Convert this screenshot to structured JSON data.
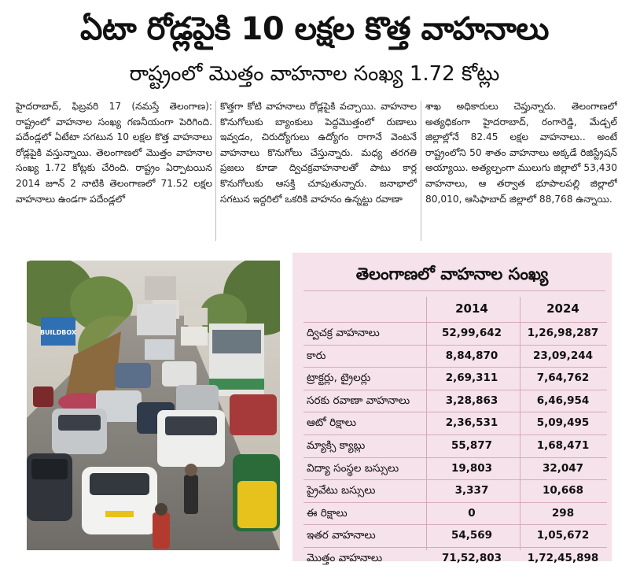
{
  "headline": "ఏటా రోడ్లపైకి 10 లక్షల కొత్త వాహనాలు",
  "subhead": "రాష్ట్రంలో మొత్తం వాహనాల సంఖ్య 1.72 కోట్లు",
  "columns": [
    "హైదరాబాద్, ఫిబ్రవరి 17 (నమస్తే తెలంగాణ): రాష్ట్రంలో వాహనాల సంఖ్య గణనీయంగా పెరిగింది. పదేండ్లలో ఏటేటా సగటున 10 లక్షల కొత్త వాహనాలు రోడ్లపైకి వస్తున్నాయి. తెలంగాణలో మొత్తం వాహనాల సంఖ్య 1.72 కోట్లకు చేరింది. రాష్ట్రం ఏర్పాటయిన 2014 జూన్ 2 నాటికి తెలంగాణలో 71.52 లక్షల వాహనాలు ఉండగా పదేండ్లలో",
    "కొత్తగా కోటి వాహనాలు రోడ్లపైకి వచ్చాయి. వాహనాల కొనుగోలుకు బ్యాంకులు పెద్దమొత్తంలో రుణాలు ఇవ్వడం, చిరుద్యోగులు ఉద్యోగం రాగానే వెంటనే వాహనాలు కొనుగోలు చేస్తున్నారు. మధ్య తరగతి ప్రజలు కూడా ద్విచక్రవాహనాలతో పాటు కార్ల కొనుగోలుకు ఆసక్తి చూపుతున్నారు. జనాభాలో సగటున ఇద్దరిలో ఒకరికి వాహనం ఉన్నట్టు రవాణా",
    "శాఖ అధికారులు చెప్తున్నారు. తెలంగాణలో అత్యధికంగా హైదరాబాద్, రంగారెడ్డి, మేడ్చల్ జిల్లాల్లోనే 82.45 లక్షల వాహనాలు.. అంటే రాష్ట్రంలోని 50 శాతం వాహనాలు అక్కడే రిజిస్ట్రేషన్ అయ్యాయి. అత్యల్పంగా ములుగు జిల్లాలో 53,430 వాహనాలు, ఆ తర్వాత భూపాలపల్లి జిల్లాలో 80,010, ఆసిఫాబాద్ జిల్లాలో 88,768 ఉన్నాయి."
  ],
  "photo": {
    "shop_sign": "BUILDBOX"
  },
  "table": {
    "title": "తెలంగాణలో వాహనాల సంఖ్య",
    "headers": [
      "2014",
      "2024"
    ],
    "rows": [
      {
        "label": "ద్విచక్ర వాహనాలు",
        "y2014": "52,99,642",
        "y2024": "1,26,98,287"
      },
      {
        "label": "కారు",
        "y2014": "8,84,870",
        "y2024": "23,09,244"
      },
      {
        "label": "ట్రాక్టర్లు, ట్రైలర్లు",
        "y2014": "2,69,311",
        "y2024": "7,64,762"
      },
      {
        "label": "సరకు రవాణా వాహనాలు",
        "y2014": "3,28,863",
        "y2024": "6,46,954"
      },
      {
        "label": "ఆటో రిక్షాలు",
        "y2014": "2,36,531",
        "y2024": "5,09,495"
      },
      {
        "label": "మ్యాక్సి క్యాబ్లు",
        "y2014": "55,877",
        "y2024": "1,68,471"
      },
      {
        "label": "విద్యా సంస్థల బస్సులు",
        "y2014": "19,803",
        "y2024": "32,047"
      },
      {
        "label": "ప్రైవేటు బస్సులు",
        "y2014": "3,337",
        "y2024": "10,668"
      },
      {
        "label": "ఈ రిక్షాలు",
        "y2014": "0",
        "y2024": "298"
      },
      {
        "label": "ఇతర వాహనాలు",
        "y2014": "54,569",
        "y2024": "1,05,672"
      },
      {
        "label": "మొత్తం వాహనాలు",
        "y2014": "71,52,803",
        "y2024": "1,72,45,898"
      }
    ]
  },
  "colors": {
    "panel_bg": "#f6e2ea",
    "panel_rule": "#d8a9bb",
    "sign_blue": "#2f6fb4"
  }
}
